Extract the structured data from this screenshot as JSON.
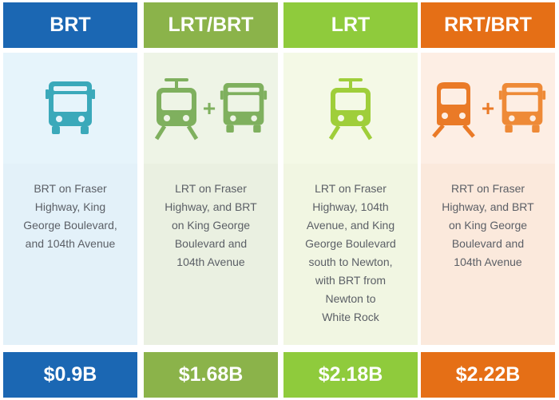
{
  "colors": {
    "brt": "#1b67b3",
    "lrt_brt": "#8bb34a",
    "lrt": "#8fcb3c",
    "rrt_brt": "#e56f16",
    "bus_teal": "#3ba9ba",
    "lrt_green": "#88bf3c",
    "rrt_orange": "#ea7a27",
    "bus_orange": "#ee8a37"
  },
  "columns": [
    {
      "title": "BRT",
      "icons": [
        "bus-icon"
      ],
      "description": "BRT on Fraser\nHighway, King\nGeorge Boulevard,\nand 104th Avenue",
      "cost": "$0.9B"
    },
    {
      "title": "LRT/BRT",
      "icons": [
        "train-icon",
        "bus-icon"
      ],
      "plus": "+",
      "description": "LRT on Fraser\nHighway, and BRT\non King George\nBoulevard and\n104th Avenue",
      "cost": "$1.68B"
    },
    {
      "title": "LRT",
      "icons": [
        "train-icon"
      ],
      "description": "LRT on Fraser\nHighway, 104th\nAvenue, and King\nGeorge Boulevard\nsouth to Newton,\nwith BRT from\nNewton to\nWhite Rock",
      "cost": "$2.18B"
    },
    {
      "title": "RRT/BRT",
      "icons": [
        "rapid-train-icon",
        "bus-icon"
      ],
      "plus": "+",
      "description": "RRT on Fraser\nHighway, and BRT\non King George\nBoulevard and\n104th Avenue",
      "cost": "$2.22B"
    }
  ]
}
